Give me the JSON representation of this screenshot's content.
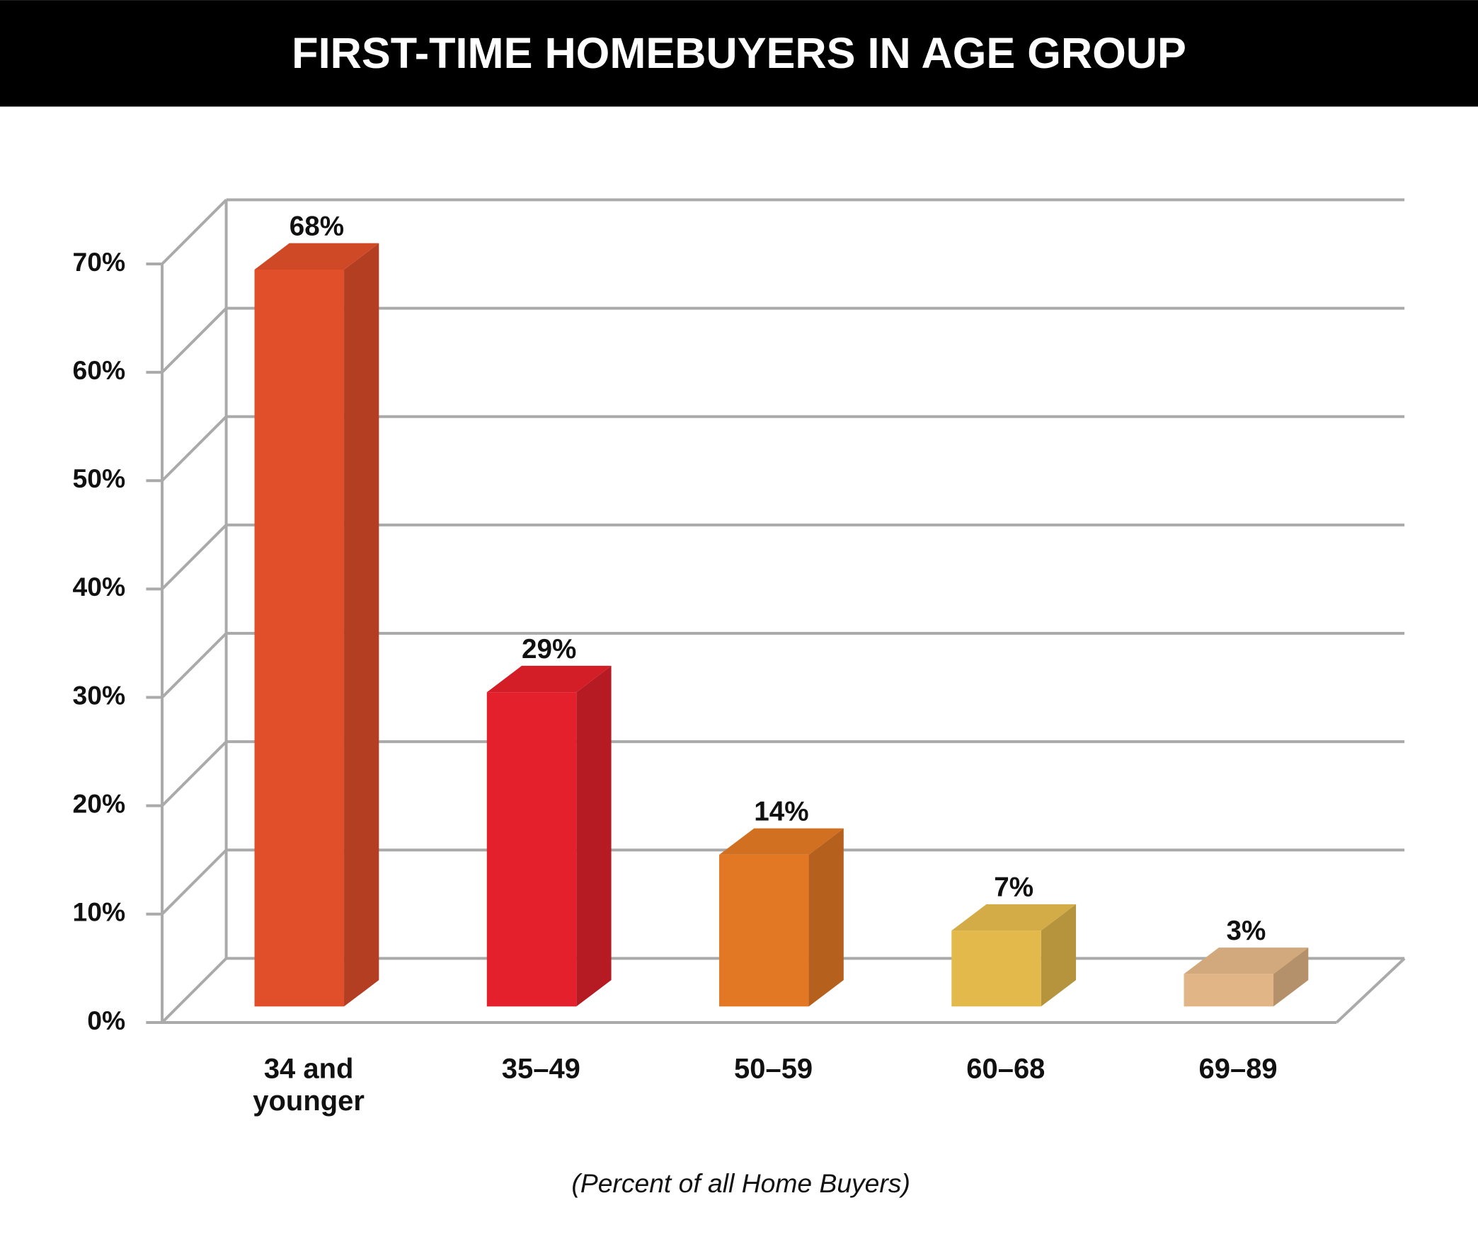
{
  "chart_data": {
    "type": "bar3d",
    "title": "FIRST-TIME HOMEBUYERS IN AGE GROUP",
    "note": "(Percent of all Home Buyers)",
    "categories": [
      "34 and younger",
      "35–49",
      "50–59",
      "60–68",
      "69–89"
    ],
    "values": [
      68,
      29,
      14,
      7,
      3
    ],
    "value_labels": [
      "68%",
      "29%",
      "14%",
      "7%",
      "3%"
    ],
    "colors": [
      "#e04e2a",
      "#e3202b",
      "#e27823",
      "#e3b94c",
      "#e2b586"
    ],
    "ylim": [
      0,
      70
    ],
    "yticks": [
      {
        "value": 0,
        "label": "0%"
      },
      {
        "value": 10,
        "label": "10%"
      },
      {
        "value": 20,
        "label": "20%"
      },
      {
        "value": 30,
        "label": "30%"
      },
      {
        "value": 40,
        "label": "40%"
      },
      {
        "value": 50,
        "label": "50%"
      },
      {
        "value": 60,
        "label": "60%"
      },
      {
        "value": 70,
        "label": "70%"
      }
    ],
    "grid": true
  }
}
